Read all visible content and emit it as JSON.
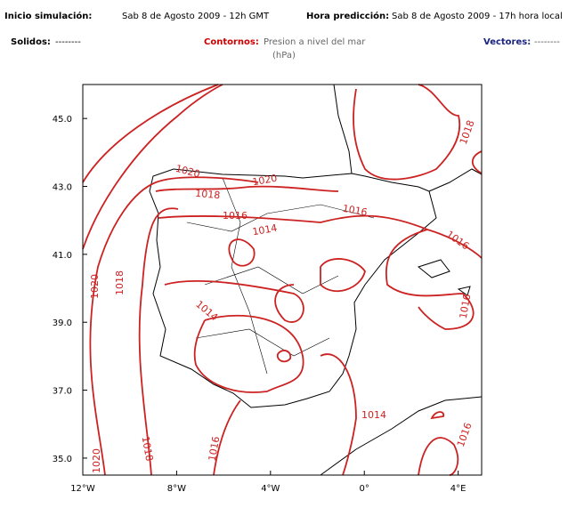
{
  "header": {
    "start_label": "Inicio simulación:",
    "start_value": "Sab 8 de Agosto 2009 - 12h GMT",
    "forecast_label": "Hora predicción:",
    "forecast_value": "Sab 8 de Agosto 2009 - 17h hora local"
  },
  "legend": {
    "solid_label": "Solidos:",
    "solid_value": "--------",
    "contour_label": "Contornos:",
    "contour_value": "Presion a nivel del mar",
    "contour_units": "(hPa)",
    "vector_label": "Vectores:",
    "vector_value": "--------"
  },
  "map": {
    "lon_range": [
      -12,
      5
    ],
    "lat_range": [
      34.5,
      46
    ],
    "lat_ticks": [
      {
        "value": 45,
        "label": "45.0"
      },
      {
        "value": 43,
        "label": "43.0"
      },
      {
        "value": 41,
        "label": "41.0"
      },
      {
        "value": 39,
        "label": "39.0"
      },
      {
        "value": 37,
        "label": "37.0"
      },
      {
        "value": 35,
        "label": "35.0"
      }
    ],
    "lon_ticks": [
      {
        "value": -12,
        "label": "12°W"
      },
      {
        "value": -8,
        "label": "8°W"
      },
      {
        "value": -4,
        "label": "4°W"
      },
      {
        "value": 0,
        "label": "0°"
      },
      {
        "value": 4,
        "label": "4°E"
      }
    ],
    "contour_labels": [
      "1018",
      "1020",
      "1018",
      "1020",
      "1016",
      "1014",
      "1016",
      "1016",
      "1016",
      "1020",
      "1018",
      "1014",
      "1020",
      "1018",
      "1016",
      "1014",
      "1016"
    ]
  }
}
